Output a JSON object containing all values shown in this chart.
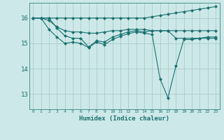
{
  "xlabel": "Humidex (Indice chaleur)",
  "bg_color": "#cde8e8",
  "line_color": "#1a7070",
  "grid_color": "#aacccc",
  "xlim": [
    -0.5,
    23.5
  ],
  "ylim": [
    12.4,
    16.6
  ],
  "yticks": [
    13,
    14,
    15,
    16
  ],
  "xticks": [
    0,
    1,
    2,
    3,
    4,
    5,
    6,
    7,
    8,
    9,
    10,
    11,
    12,
    13,
    14,
    15,
    16,
    17,
    18,
    19,
    20,
    21,
    22,
    23
  ],
  "series": [
    [
      16.0,
      16.0,
      16.0,
      16.0,
      16.0,
      16.0,
      16.0,
      16.0,
      16.0,
      16.0,
      16.0,
      16.0,
      16.0,
      16.0,
      16.0,
      16.05,
      16.1,
      16.15,
      16.2,
      16.25,
      16.3,
      16.35,
      16.4,
      16.45
    ],
    [
      16.0,
      16.0,
      15.9,
      15.65,
      15.5,
      15.45,
      15.45,
      15.4,
      15.4,
      15.45,
      15.5,
      15.5,
      15.55,
      15.55,
      15.55,
      15.5,
      15.5,
      15.5,
      15.5,
      15.5,
      15.5,
      15.5,
      15.5,
      15.5
    ],
    [
      16.0,
      16.0,
      16.0,
      15.6,
      15.3,
      15.2,
      15.2,
      14.85,
      15.1,
      15.05,
      15.25,
      15.35,
      15.45,
      15.5,
      15.45,
      15.5,
      15.5,
      15.5,
      15.2,
      15.2,
      15.2,
      15.2,
      15.2,
      15.2
    ],
    [
      16.0,
      16.0,
      15.55,
      15.25,
      15.0,
      15.05,
      15.0,
      14.83,
      15.05,
      14.95,
      15.15,
      15.28,
      15.38,
      15.45,
      15.4,
      15.35,
      13.6,
      12.85,
      14.1,
      15.15,
      15.15,
      15.2,
      15.25,
      15.25
    ]
  ]
}
